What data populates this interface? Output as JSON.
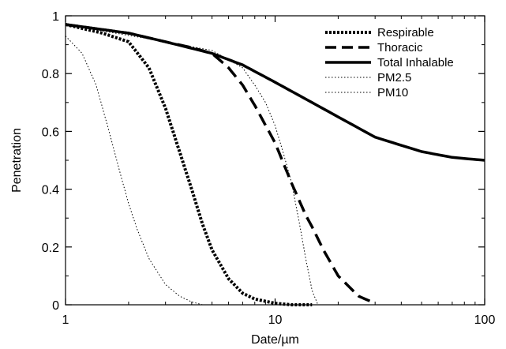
{
  "chart_data": {
    "type": "line",
    "xlabel": "Date/µm",
    "ylabel": "Penetration",
    "xscale": "log",
    "xlim": [
      1,
      100
    ],
    "ylim": [
      0,
      1
    ],
    "x_ticks": [
      {
        "value": 1,
        "label": "1"
      },
      {
        "value": 10,
        "label": "10"
      },
      {
        "value": 100,
        "label": "100"
      }
    ],
    "y_ticks": [
      {
        "value": 0,
        "label": "0"
      },
      {
        "value": 0.2,
        "label": "0.2"
      },
      {
        "value": 0.4,
        "label": "0.4"
      },
      {
        "value": 0.6,
        "label": "0.6"
      },
      {
        "value": 0.8,
        "label": "0.8"
      },
      {
        "value": 1,
        "label": "1"
      }
    ],
    "grid": false,
    "legend_position": "top-right",
    "series": [
      {
        "name": "Respirable",
        "style": "dotted-thick",
        "x": [
          1,
          1.5,
          2,
          2.5,
          3,
          3.5,
          4,
          4.5,
          5,
          6,
          7,
          8,
          10,
          12,
          15
        ],
        "y": [
          0.97,
          0.94,
          0.91,
          0.82,
          0.68,
          0.53,
          0.4,
          0.28,
          0.19,
          0.09,
          0.04,
          0.02,
          0.005,
          0,
          0
        ]
      },
      {
        "name": "Thoracic",
        "style": "dashed",
        "x": [
          1,
          2,
          3,
          4,
          5,
          6,
          7,
          8,
          10,
          12,
          14,
          15,
          17,
          20,
          25,
          30
        ],
        "y": [
          0.97,
          0.94,
          0.91,
          0.89,
          0.87,
          0.82,
          0.76,
          0.69,
          0.56,
          0.42,
          0.31,
          0.27,
          0.19,
          0.1,
          0.03,
          0.005
        ]
      },
      {
        "name": "Total Inhalable",
        "style": "solid-thick",
        "x": [
          1,
          2,
          3,
          5,
          7,
          10,
          15,
          20,
          30,
          50,
          70,
          100
        ],
        "y": [
          0.97,
          0.94,
          0.91,
          0.87,
          0.83,
          0.77,
          0.7,
          0.65,
          0.58,
          0.53,
          0.51,
          0.5
        ]
      },
      {
        "name": "PM2.5",
        "style": "dotted-thin",
        "x": [
          1,
          1.2,
          1.4,
          1.6,
          1.8,
          2,
          2.2,
          2.5,
          3,
          3.5,
          4,
          4.5
        ],
        "y": [
          0.93,
          0.87,
          0.76,
          0.61,
          0.47,
          0.35,
          0.26,
          0.16,
          0.07,
          0.03,
          0.01,
          0
        ]
      },
      {
        "name": "PM10",
        "style": "dotted-thin",
        "x": [
          1,
          3,
          5,
          7,
          8,
          9,
          10,
          11,
          12,
          13,
          14,
          15,
          16
        ],
        "y": [
          0.97,
          0.91,
          0.88,
          0.82,
          0.76,
          0.7,
          0.62,
          0.52,
          0.42,
          0.29,
          0.16,
          0.05,
          0
        ]
      }
    ]
  }
}
